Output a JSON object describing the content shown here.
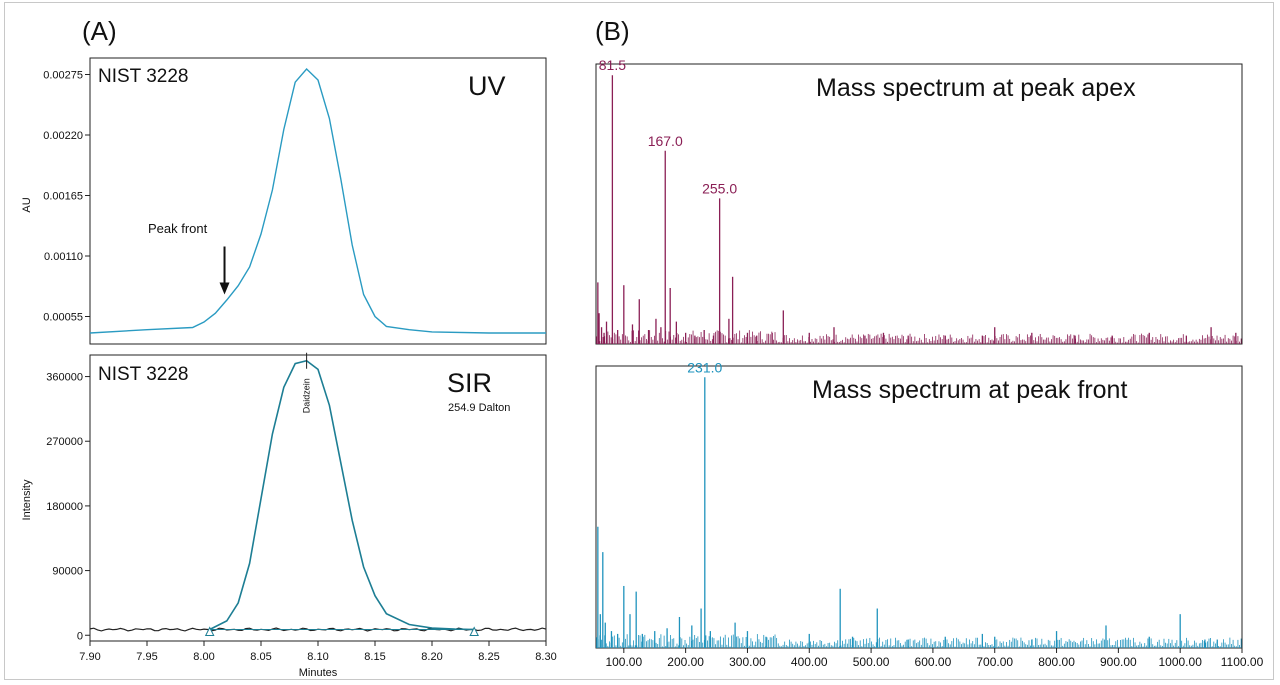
{
  "colors": {
    "uv_trace": "#2a9bc2",
    "sir_trace": "#1d7e94",
    "sir_baseline": "#222222",
    "apex_spectrum": "#8a1f55",
    "front_spectrum": "#1f93bd",
    "axis": "#222222"
  },
  "panel_labels": {
    "a": "(A)",
    "b": "(B)"
  },
  "chart_data": [
    {
      "id": "uv",
      "type": "line",
      "sample_label": "NIST 3228",
      "trace_label": "UV",
      "ylabel": "AU",
      "xlabel": "",
      "xlim": [
        7.9,
        8.3
      ],
      "ylim": [
        0.0003,
        0.0029
      ],
      "yticks": [
        "0.00055",
        "0.00110",
        "0.00165",
        "0.00220",
        "0.00275"
      ],
      "annotation": {
        "text": "Peak front",
        "x": 8.018,
        "y": 0.00075
      },
      "x": [
        7.9,
        7.95,
        7.99,
        8.0,
        8.01,
        8.02,
        8.03,
        8.04,
        8.05,
        8.06,
        8.07,
        8.08,
        8.09,
        8.1,
        8.11,
        8.12,
        8.13,
        8.14,
        8.15,
        8.16,
        8.18,
        8.2,
        8.25,
        8.3
      ],
      "y": [
        0.0004,
        0.00043,
        0.00045,
        0.0005,
        0.00058,
        0.0007,
        0.00083,
        0.001,
        0.0013,
        0.0017,
        0.00225,
        0.00268,
        0.0028,
        0.0027,
        0.00235,
        0.0018,
        0.0012,
        0.00075,
        0.00055,
        0.00046,
        0.00043,
        0.00041,
        0.0004,
        0.0004
      ]
    },
    {
      "id": "sir",
      "type": "line",
      "sample_label": "NIST 3228",
      "trace_label": "SIR",
      "trace_sublabel": "254.9 Dalton",
      "peak_label": "Daidzein",
      "ylabel": "Intensity",
      "xlabel": "Minutes",
      "xlim": [
        7.9,
        8.3
      ],
      "ylim": [
        -8000,
        390000
      ],
      "xticks": [
        "7.90",
        "7.95",
        "8.00",
        "8.05",
        "8.10",
        "8.15",
        "8.20",
        "8.25",
        "8.30"
      ],
      "yticks": [
        "0",
        "90000",
        "180000",
        "270000",
        "360000"
      ],
      "integration_markers": [
        8.005,
        8.237
      ],
      "baseline_level": 8000,
      "x": [
        8.005,
        8.02,
        8.03,
        8.04,
        8.05,
        8.06,
        8.07,
        8.08,
        8.09,
        8.1,
        8.11,
        8.12,
        8.13,
        8.14,
        8.15,
        8.16,
        8.18,
        8.2,
        8.22,
        8.237
      ],
      "y": [
        8000,
        20000,
        45000,
        100000,
        190000,
        280000,
        345000,
        378000,
        382000,
        370000,
        320000,
        240000,
        160000,
        95000,
        55000,
        30000,
        15000,
        10000,
        8500,
        8000
      ]
    },
    {
      "id": "apex",
      "type": "bar",
      "title": "Mass spectrum at peak apex",
      "xlim": [
        55,
        1100
      ],
      "ylim": [
        0,
        100
      ],
      "peak_labels": [
        {
          "text": "81.5",
          "x": 81.5,
          "y": 96
        },
        {
          "text": "167.0",
          "x": 167.0,
          "y": 69
        },
        {
          "text": "255.0",
          "x": 255.0,
          "y": 52
        }
      ],
      "x": [
        58,
        60,
        64,
        68,
        72,
        81.5,
        90,
        100,
        114,
        125,
        140,
        152,
        160,
        167.0,
        175,
        185,
        200,
        215,
        230,
        245,
        255.0,
        270,
        276,
        300,
        315,
        340,
        358,
        400,
        440,
        490,
        520,
        560,
        620,
        680,
        700,
        760,
        830,
        890,
        950,
        1010,
        1050,
        1090
      ],
      "values": [
        22,
        11,
        6,
        4,
        8,
        96,
        5,
        21,
        7,
        16,
        5,
        9,
        6,
        69,
        20,
        8,
        4,
        3,
        5,
        3,
        52,
        9,
        24,
        4,
        3,
        4,
        12,
        4,
        6,
        3,
        4,
        3,
        3,
        3,
        6,
        4,
        3,
        3,
        4,
        3,
        6,
        4
      ]
    },
    {
      "id": "front",
      "type": "bar",
      "title": "Mass spectrum at peak front",
      "xlabel": "",
      "xlim": [
        55,
        1100
      ],
      "ylim": [
        0,
        100
      ],
      "xticks": [
        "100.00",
        "200.00",
        "300.00",
        "400.00",
        "500.00",
        "600.00",
        "700.00",
        "800.00",
        "900.00",
        "1000.00",
        "1100.00"
      ],
      "peak_labels": [
        {
          "text": "231.0",
          "x": 231.0,
          "y": 96
        }
      ],
      "x": [
        58,
        62,
        66,
        70,
        80,
        90,
        100,
        110,
        120,
        130,
        150,
        170,
        190,
        210,
        225,
        231.0,
        240,
        280,
        300,
        330,
        400,
        450,
        470,
        510,
        560,
        620,
        680,
        700,
        760,
        800,
        880,
        950,
        1000,
        1040,
        1060
      ],
      "values": [
        43,
        12,
        34,
        9,
        6,
        5,
        22,
        12,
        20,
        5,
        6,
        7,
        11,
        8,
        14,
        96,
        6,
        9,
        6,
        4,
        5,
        21,
        4,
        14,
        3,
        4,
        5,
        4,
        3,
        6,
        8,
        4,
        12,
        3,
        3
      ]
    }
  ]
}
